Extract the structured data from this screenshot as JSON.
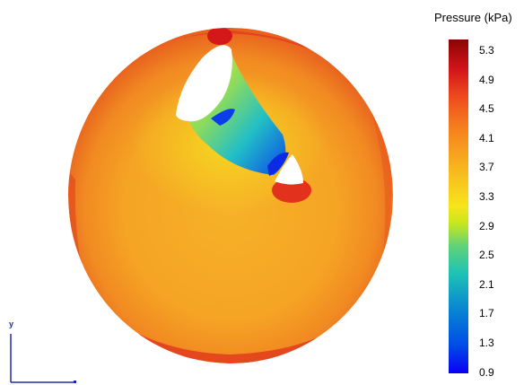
{
  "legend": {
    "title": "Pressure (kPa)",
    "ticks": [
      "5.3",
      "4.9",
      "4.5",
      "4.1",
      "3.7",
      "3.3",
      "2.9",
      "2.5",
      "2.1",
      "1.7",
      "1.3",
      "0.9"
    ]
  },
  "axes": {
    "y_label": "y",
    "color": "#1a2bb0"
  },
  "colors": {
    "max": "#8a0404",
    "high": "#e0241c",
    "mid_high": "#f5a323",
    "mid": "#f3ec1f",
    "low": "#20b8c6",
    "min": "#0a00f5"
  }
}
